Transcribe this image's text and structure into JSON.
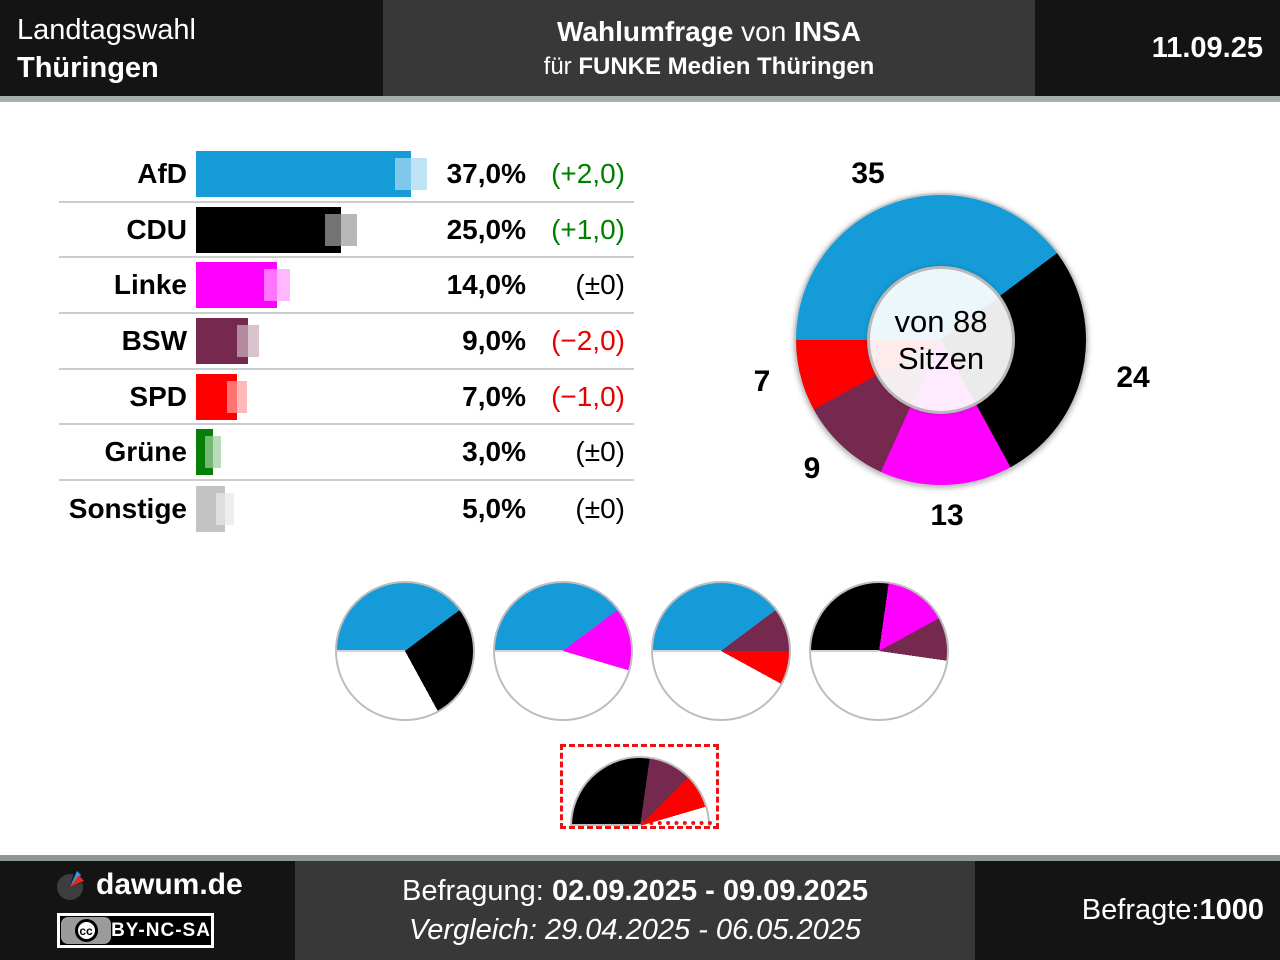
{
  "header": {
    "title_line1": "Landtagswahl",
    "title_line2": "Thüringen",
    "center_t1_bold1": "Wahlumfrage",
    "center_t1_reg": " von ",
    "center_t1_bold2": "INSA",
    "center_t2_reg": "für ",
    "center_t2_bold": "FUNKE Medien Thüringen",
    "date": "11.09.25"
  },
  "palette": {
    "AfD": "#169bd9",
    "CDU": "#000000",
    "Linke": "#ff00ff",
    "BSW": "#76294e",
    "SPD": "#ff0000",
    "Grüne": "#077f07",
    "Sonstige": "#c3c3c3"
  },
  "colors": {
    "positive": "#008000",
    "negative": "#e80000",
    "neutral": "#000000"
  },
  "chart_data": [
    {
      "type": "bar",
      "categories": [
        "AfD",
        "CDU",
        "Linke",
        "BSW",
        "SPD",
        "Grüne",
        "Sonstige"
      ],
      "values": [
        37.0,
        25.0,
        14.0,
        9.0,
        7.0,
        3.0,
        5.0
      ],
      "value_labels": [
        "37,0%",
        "25,0%",
        "14,0%",
        "9,0%",
        "7,0%",
        "3,0%",
        "5,0%"
      ],
      "change_labels": [
        "(+2,0)",
        "(+1,0)",
        "(±0)",
        "(−2,0)",
        "(−1,0)",
        "(±0)",
        "(±0)"
      ],
      "xlim": [
        0,
        41
      ],
      "ylabel": "",
      "xlabel": ""
    },
    {
      "type": "pie",
      "subtype": "donut",
      "total": 88,
      "center_label_line1": "von 88",
      "center_label_line2": "Sitzen",
      "categories": [
        "AfD",
        "CDU",
        "Linke",
        "BSW",
        "SPD"
      ],
      "values": [
        35,
        24,
        13,
        9,
        7
      ],
      "labels": [
        "35",
        "24",
        "13",
        "9",
        "7"
      ]
    },
    {
      "type": "pie",
      "subtype": "coalition-group",
      "total": 88,
      "pies": [
        {
          "parties": [
            "AfD",
            "CDU"
          ],
          "seats": [
            35,
            24
          ],
          "majority": true
        },
        {
          "parties": [
            "AfD",
            "Linke"
          ],
          "seats": [
            35,
            13
          ],
          "majority": true
        },
        {
          "parties": [
            "AfD",
            "BSW",
            "SPD"
          ],
          "seats": [
            35,
            9,
            7
          ],
          "majority": true
        },
        {
          "parties": [
            "CDU",
            "Linke",
            "BSW"
          ],
          "seats": [
            24,
            13,
            9
          ],
          "majority": true
        },
        {
          "parties": [
            "CDU",
            "BSW",
            "SPD"
          ],
          "seats": [
            24,
            9,
            7
          ],
          "majority": false
        }
      ]
    }
  ],
  "footer": {
    "brand": "dawum.de",
    "cc_text": "cc",
    "license": "BY-NC-SA",
    "line1_label": "Befragung: ",
    "line1_value": "02.09.2025 - 09.09.2025",
    "line2_label": "Vergleich: ",
    "line2_value": "29.04.2025 - 06.05.2025",
    "right_label": "Befragte: ",
    "right_value": "1000"
  }
}
